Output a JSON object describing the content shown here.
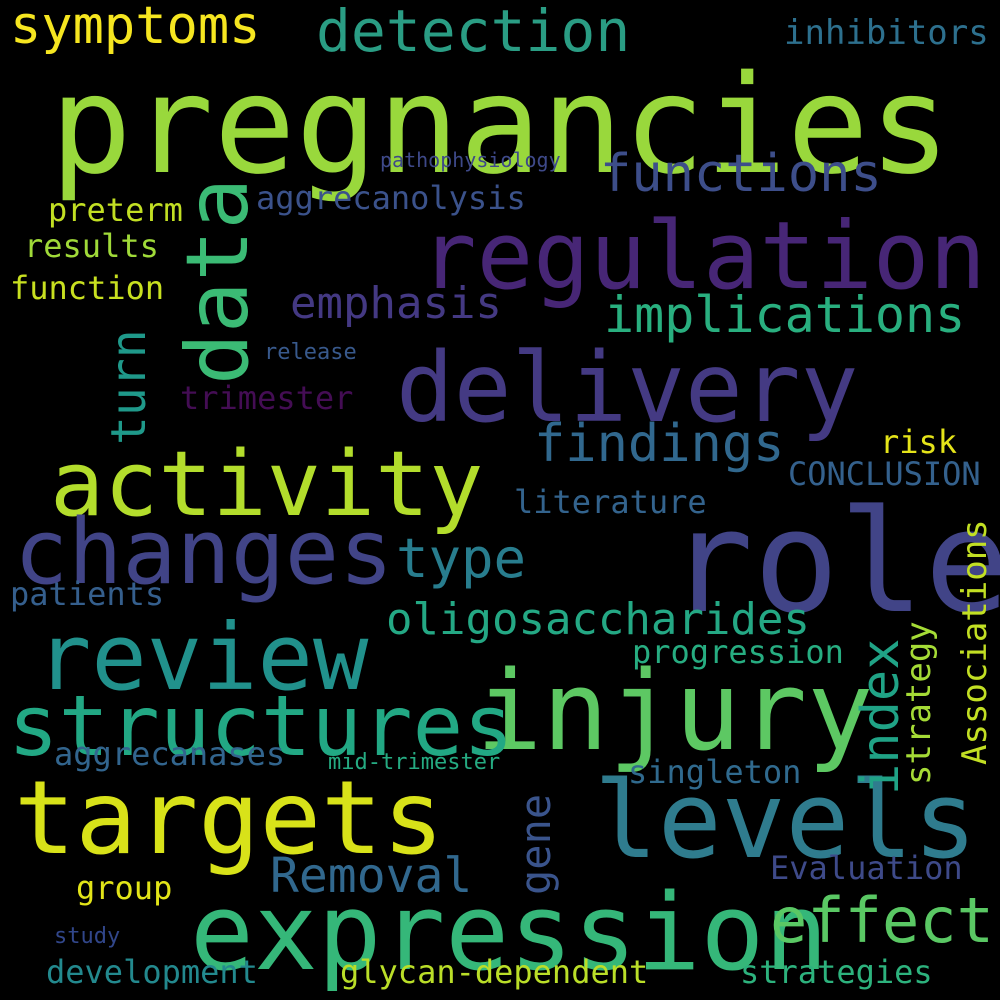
{
  "words": [
    {
      "text": "pregnancies",
      "color": "#99d83c"
    },
    {
      "text": "role",
      "color": "#414487"
    },
    {
      "text": "activity",
      "color": "#b3dd2c"
    },
    {
      "text": "regulation",
      "color": "#472676"
    },
    {
      "text": "delivery",
      "color": "#443a83"
    },
    {
      "text": "injury",
      "color": "#5dc863"
    },
    {
      "text": "expression",
      "color": "#35b779"
    },
    {
      "text": "targets",
      "color": "#d8e219"
    },
    {
      "text": "levels",
      "color": "#2f7c8e"
    },
    {
      "text": "changes",
      "color": "#414487"
    },
    {
      "text": "review",
      "color": "#21918c"
    },
    {
      "text": "structures",
      "color": "#22a884"
    },
    {
      "text": "data",
      "color": "#3bbb75"
    },
    {
      "text": "detection",
      "color": "#2a9d84"
    },
    {
      "text": "symptoms",
      "color": "#f6e620"
    },
    {
      "text": "functions",
      "color": "#3d4e8a"
    },
    {
      "text": "implications",
      "color": "#29af7f"
    },
    {
      "text": "findings",
      "color": "#31688e"
    },
    {
      "text": "emphasis",
      "color": "#443983"
    },
    {
      "text": "oligosaccharides",
      "color": "#24a884"
    },
    {
      "text": "effect",
      "color": "#5ac864"
    },
    {
      "text": "type",
      "color": "#287d8e"
    },
    {
      "text": "Removal",
      "color": "#31688e"
    },
    {
      "text": "index",
      "color": "#20a386"
    },
    {
      "text": "turn",
      "color": "#1f998a"
    },
    {
      "text": "gene",
      "color": "#3a548c"
    },
    {
      "text": "inhibitors",
      "color": "#2d708e"
    },
    {
      "text": "aggrecanolysis",
      "color": "#3b528b"
    },
    {
      "text": "preterm",
      "color": "#c2df23"
    },
    {
      "text": "results",
      "color": "#a0da39"
    },
    {
      "text": "function",
      "color": "#c8e020"
    },
    {
      "text": "pathophysiology",
      "color": "#3e4989"
    },
    {
      "text": "release",
      "color": "#38598c"
    },
    {
      "text": "trimester",
      "color": "#440d54"
    },
    {
      "text": "risk",
      "color": "#e5e419"
    },
    {
      "text": "CONCLUSION",
      "color": "#34618d"
    },
    {
      "text": "literature",
      "color": "#33638d"
    },
    {
      "text": "patients",
      "color": "#355f8d"
    },
    {
      "text": "progression",
      "color": "#27ad81"
    },
    {
      "text": "aggrecanases",
      "color": "#32658e"
    },
    {
      "text": "mid-trimester",
      "color": "#25ab82"
    },
    {
      "text": "singleton",
      "color": "#306a8e"
    },
    {
      "text": "Evaluation",
      "color": "#3e4a89"
    },
    {
      "text": "group",
      "color": "#e2e418"
    },
    {
      "text": "study",
      "color": "#31468a"
    },
    {
      "text": "development",
      "color": "#23898e"
    },
    {
      "text": "glycan-dependent",
      "color": "#bade28"
    },
    {
      "text": "strategies",
      "color": "#2db27d"
    },
    {
      "text": "Associations",
      "color": "#c2df23"
    },
    {
      "text": "strategy",
      "color": "#a5db36"
    }
  ]
}
